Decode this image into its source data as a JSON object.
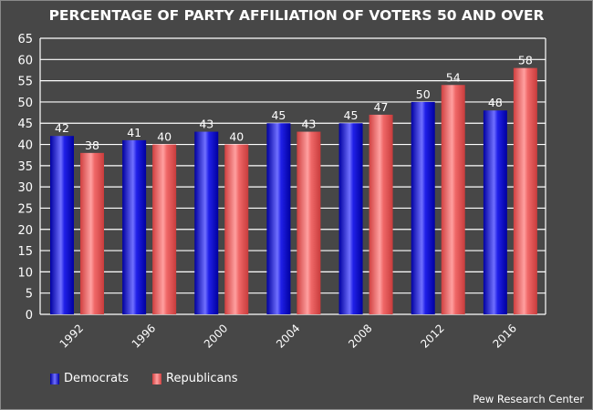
{
  "chart_data": {
    "type": "bar",
    "title": "PERCENTAGE OF PARTY AFFILIATION OF VOTERS 50 AND OVER",
    "categories": [
      "1992",
      "1996",
      "2000",
      "2004",
      "2008",
      "2012",
      "2016"
    ],
    "series": [
      {
        "name": "Democrats",
        "values": [
          42,
          41,
          43,
          45,
          45,
          50,
          48
        ],
        "color": "#1010e0"
      },
      {
        "name": "Republicans",
        "values": [
          38,
          40,
          40,
          43,
          47,
          54,
          58
        ],
        "color": "#f06060"
      }
    ],
    "ylim": [
      0,
      65
    ],
    "yticks": [
      0,
      5,
      10,
      15,
      20,
      25,
      30,
      35,
      40,
      45,
      50,
      55,
      60,
      65
    ],
    "grid": true,
    "legend": "bottom-left",
    "source": "Pew Research Center"
  }
}
